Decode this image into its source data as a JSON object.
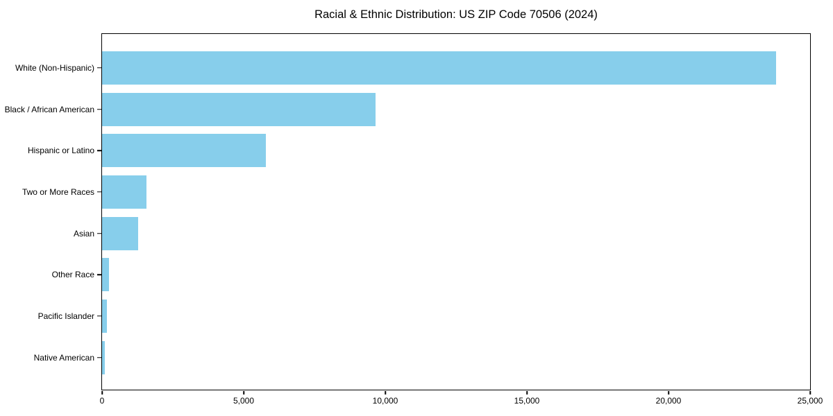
{
  "chart_data": {
    "type": "bar",
    "orientation": "horizontal",
    "title": "Racial & Ethnic Distribution: US ZIP Code 70506 (2024)",
    "categories": [
      "White (Non-Hispanic)",
      "Black / African American",
      "Hispanic or Latino",
      "Two or More Races",
      "Asian",
      "Other Race",
      "Pacific Islander",
      "Native American"
    ],
    "values": [
      23800,
      9650,
      5780,
      1580,
      1270,
      240,
      160,
      100
    ],
    "xlabel": "",
    "ylabel": "",
    "xlim": [
      0,
      25000
    ],
    "x_tick_values": [
      0,
      5000,
      10000,
      15000,
      20000,
      25000
    ],
    "x_tick_labels": [
      "0",
      "5,000",
      "10,000",
      "15,000",
      "20,000",
      "25,000"
    ],
    "grid": false,
    "legend": false,
    "bar_color": "#87CEEB",
    "axis_color": "#000000",
    "background_color": "#ffffff"
  }
}
